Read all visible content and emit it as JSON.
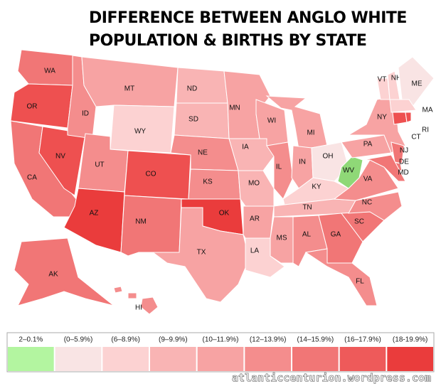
{
  "header": {
    "title_lines": [
      "DIFFERENCE BETWEEN ANGLO WHITE",
      "POPULATION & BIRTHS  BY STATE"
    ]
  },
  "states": [
    {
      "label": "WA",
      "color": "#f17676"
    },
    {
      "label": "OR",
      "color": "#ee5050"
    },
    {
      "label": "CA",
      "color": "#f17676"
    },
    {
      "label": "NV",
      "color": "#ee5050"
    },
    {
      "label": "ID",
      "color": "#f48d8d"
    },
    {
      "label": "MT",
      "color": "#f7a3a3"
    },
    {
      "label": "WY",
      "color": "#fcd2d2"
    },
    {
      "label": "UT",
      "color": "#f48d8d"
    },
    {
      "label": "AZ",
      "color": "#ea3c3c"
    },
    {
      "label": "CO",
      "color": "#ee5050"
    },
    {
      "label": "NM",
      "color": "#f17676"
    },
    {
      "label": "ND",
      "color": "#f9b4b4"
    },
    {
      "label": "SD",
      "color": "#f9b4b4"
    },
    {
      "label": "NE",
      "color": "#f48d8d"
    },
    {
      "label": "KS",
      "color": "#f48d8d"
    },
    {
      "label": "OK",
      "color": "#ea3c3c"
    },
    {
      "label": "TX",
      "color": "#f7a3a3"
    },
    {
      "label": "MN",
      "color": "#f7a3a3"
    },
    {
      "label": "IA",
      "color": "#f9b4b4"
    },
    {
      "label": "MO",
      "color": "#f9b4b4"
    },
    {
      "label": "AR",
      "color": "#f7a3a3"
    },
    {
      "label": "LA",
      "color": "#fcd2d2"
    },
    {
      "label": "WI",
      "color": "#f7a3a3"
    },
    {
      "label": "IL",
      "color": "#f48d8d"
    },
    {
      "label": "MI",
      "color": "#f7a3a3"
    },
    {
      "label": "IN",
      "color": "#f7a3a3"
    },
    {
      "label": "OH",
      "color": "#f9e4e4"
    },
    {
      "label": "KY",
      "color": "#fcd2d2"
    },
    {
      "label": "TN",
      "color": "#f9b4b4"
    },
    {
      "label": "MS",
      "color": "#f7a3a3"
    },
    {
      "label": "AL",
      "color": "#f48d8d"
    },
    {
      "label": "GA",
      "color": "#f17676"
    },
    {
      "label": "FL",
      "color": "#f48d8d"
    },
    {
      "label": "SC",
      "color": "#f17676"
    },
    {
      "label": "NC",
      "color": "#f48d8d"
    },
    {
      "label": "VA",
      "color": "#f48d8d"
    },
    {
      "label": "WV",
      "color": "#8fd877"
    },
    {
      "label": "PA",
      "color": "#f7a3a3"
    },
    {
      "label": "NY",
      "color": "#f7a3a3"
    },
    {
      "label": "NJ",
      "color": "#f17676"
    },
    {
      "label": "DE",
      "color": "#f17676"
    },
    {
      "label": "MD",
      "color": "#f17676"
    },
    {
      "label": "VT",
      "color": "#fcd2d2"
    },
    {
      "label": "NH",
      "color": "#fcd2d2"
    },
    {
      "label": "ME",
      "color": "#f9e4e4"
    },
    {
      "label": "MA",
      "color": "#fcd2d2"
    },
    {
      "label": "CT",
      "color": "#ee5050"
    },
    {
      "label": "RI",
      "color": "#ee5050"
    },
    {
      "label": "AK",
      "color": "#f17676"
    },
    {
      "label": "HI",
      "color": "#f48d8d"
    }
  ],
  "legend": [
    {
      "label": "2–0.1%",
      "color": "#b3f5a0"
    },
    {
      "label": "(0–5.9%)",
      "color": "#f9e4e4"
    },
    {
      "label": "(6–8.9%)",
      "color": "#fcd2d2"
    },
    {
      "label": "(9–9.9%)",
      "color": "#f9b4b4"
    },
    {
      "label": "(10–11.9%)",
      "color": "#f7a3a3"
    },
    {
      "label": "(12–13.9%)",
      "color": "#f48d8d"
    },
    {
      "label": "(14–15.9%)",
      "color": "#f17676"
    },
    {
      "label": "(16–17.9%)",
      "color": "#ee5a5a"
    },
    {
      "label": "(18-19.9%)",
      "color": "#ea3c3c"
    }
  ],
  "credit": "atlanticcenturion.wordpress.com"
}
